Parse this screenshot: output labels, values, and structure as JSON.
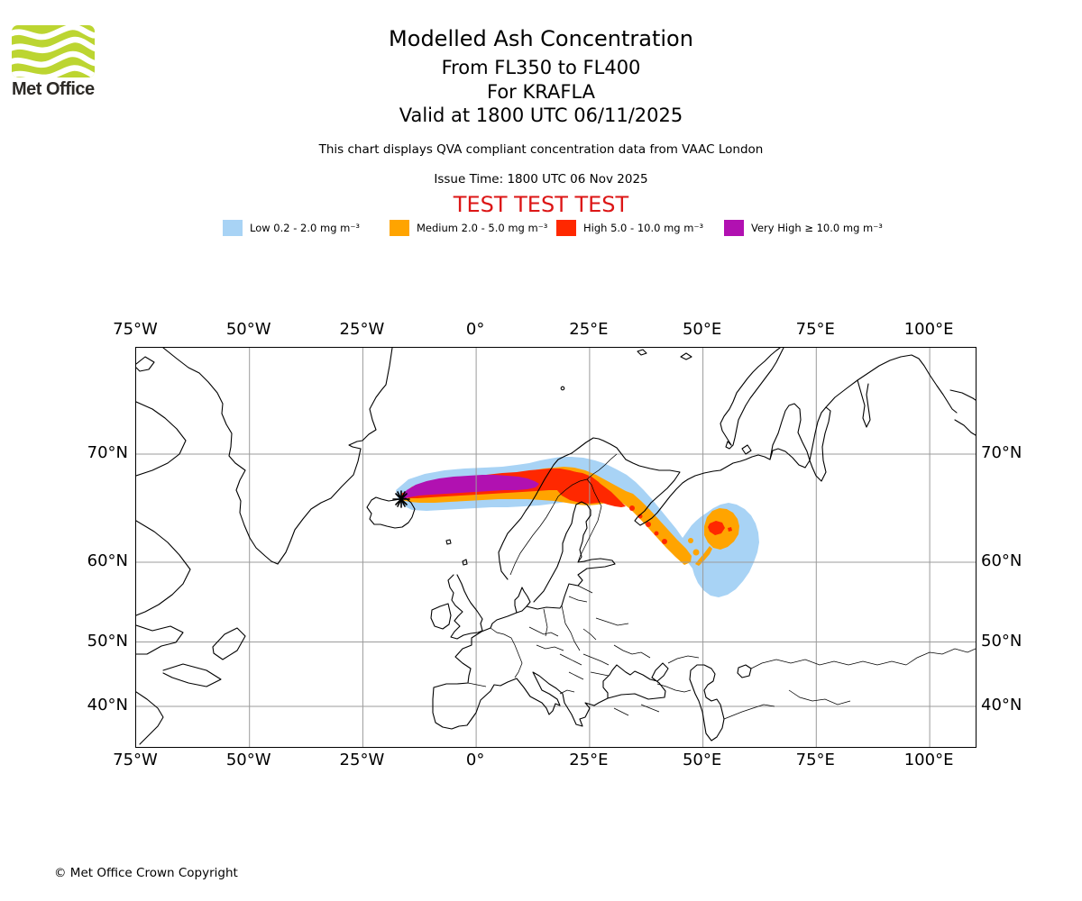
{
  "header": {
    "logo_text": "Met Office",
    "title": "Modelled Ash Concentration",
    "subtitle_flight_levels": "From FL350 to FL400",
    "subtitle_volcano": "For KRAFLA",
    "subtitle_valid": "Valid at 1800 UTC 06/11/2025",
    "description": "This chart displays QVA compliant concentration data from VAAC London",
    "issue_time": "Issue Time: 1800 UTC 06 Nov 2025",
    "test_banner": "TEST TEST TEST"
  },
  "legend": {
    "items": [
      {
        "name": "low",
        "label": "Low 0.2 - 2.0 mg m⁻³",
        "color": "#A8D3F5"
      },
      {
        "name": "medium",
        "label": "Medium 2.0 - 5.0 mg m⁻³",
        "color": "#FFA400"
      },
      {
        "name": "high",
        "label": "High 5.0 - 10.0 mg m⁻³",
        "color": "#FF2800"
      },
      {
        "name": "very-high",
        "label": "Very High  ≥  10.0 mg m⁻³",
        "color": "#B111B1"
      }
    ]
  },
  "axes": {
    "lon_labels": [
      "75°W",
      "50°W",
      "25°W",
      "0°",
      "25°E",
      "50°E",
      "75°E",
      "100°E"
    ],
    "lat_labels": [
      "70°N",
      "60°N",
      "50°N",
      "40°N"
    ]
  },
  "map_colors": {
    "low": "#A8D3F5",
    "medium": "#FFA400",
    "high": "#FF2800",
    "very_high": "#B111B1",
    "grid": "#9b9b9b",
    "coast": "#000000"
  },
  "footer": {
    "copyright": "© Met Office Crown Copyright"
  }
}
